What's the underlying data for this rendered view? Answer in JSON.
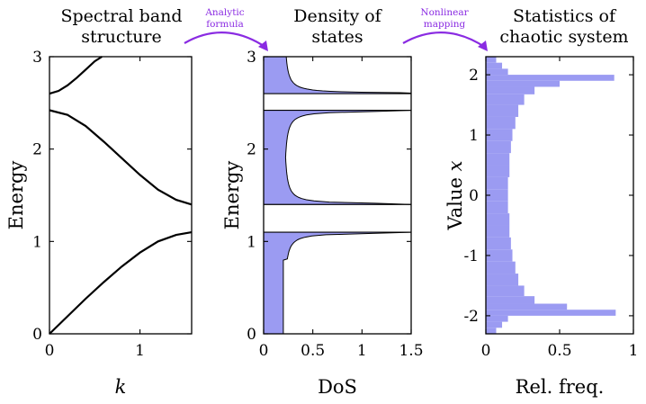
{
  "chart_data": [
    {
      "type": "line",
      "title_line1": "Spectral band",
      "title_line2": "structure",
      "xlabel": "k",
      "ylabel": "Energy",
      "xlim": [
        0,
        1.5708
      ],
      "ylim": [
        0,
        3
      ],
      "x_ticks": [
        "0",
        "1"
      ],
      "y_ticks": [
        "0",
        "1",
        "2",
        "3"
      ],
      "grid": false,
      "series": [
        {
          "values_x": [
            0,
            0.2,
            0.4,
            0.6,
            0.8,
            1.0,
            1.2,
            1.4,
            1.5708
          ],
          "values_y": [
            0.0,
            0.19,
            0.38,
            0.56,
            0.73,
            0.88,
            1.0,
            1.07,
            1.1
          ]
        },
        {
          "values_x": [
            0,
            0.2,
            0.4,
            0.6,
            0.8,
            1.0,
            1.2,
            1.4,
            1.5708
          ],
          "values_y": [
            2.42,
            2.37,
            2.25,
            2.08,
            1.9,
            1.72,
            1.56,
            1.45,
            1.4
          ]
        },
        {
          "values_x": [
            0,
            0.1,
            0.2,
            0.3,
            0.4,
            0.5,
            0.58
          ],
          "values_y": [
            2.6,
            2.63,
            2.69,
            2.77,
            2.86,
            2.95,
            3.0
          ]
        }
      ]
    },
    {
      "type": "area",
      "title_line1": "Density of",
      "title_line2": "states",
      "xlabel": "DoS",
      "ylabel": "Energy",
      "xlim": [
        0,
        1.5
      ],
      "ylim": [
        0,
        3
      ],
      "x_ticks": [
        "0",
        "0.5",
        "1",
        "1.5"
      ],
      "y_ticks": [
        "0",
        "1",
        "2",
        "3"
      ],
      "fill_color": "#9b9bf2",
      "bands": [
        [
          0,
          1.1
        ],
        [
          1.4,
          2.42
        ],
        [
          2.6,
          3.0
        ]
      ],
      "dos_min": 0.2
    },
    {
      "type": "bar",
      "orientation": "horizontal",
      "title_line1": "Statistics of",
      "title_line2": "chaotic system",
      "xlabel": "Rel. freq.",
      "ylabel": "Value x",
      "xlim": [
        0,
        1
      ],
      "ylim": [
        -2.3,
        2.3
      ],
      "x_ticks": [
        "0",
        "0.5",
        "1"
      ],
      "y_ticks": [
        "2",
        "1",
        "0",
        "-1",
        "-2"
      ],
      "fill_color": "#9b9bf2",
      "bin_centers": [
        2.25,
        2.15,
        2.05,
        1.95,
        1.85,
        1.75,
        1.6,
        1.4,
        1.2,
        1.0,
        0.8,
        0.6,
        0.4,
        0.2,
        0.0,
        -0.2,
        -0.4,
        -0.6,
        -0.8,
        -1.0,
        -1.2,
        -1.4,
        -1.6,
        -1.75,
        -1.85,
        -1.95,
        -2.05,
        -2.15,
        -2.25
      ],
      "values": [
        0.07,
        0.11,
        0.15,
        0.87,
        0.5,
        0.33,
        0.26,
        0.22,
        0.2,
        0.18,
        0.17,
        0.16,
        0.16,
        0.15,
        0.15,
        0.15,
        0.16,
        0.16,
        0.17,
        0.18,
        0.2,
        0.22,
        0.26,
        0.33,
        0.55,
        0.88,
        0.15,
        0.11,
        0.07
      ]
    }
  ],
  "arrows": [
    {
      "label_line1": "Analytic",
      "label_line2": "formula"
    },
    {
      "label_line1": "Nonlinear",
      "label_line2": "mapping"
    }
  ],
  "arrow_color": "#8a2be2"
}
